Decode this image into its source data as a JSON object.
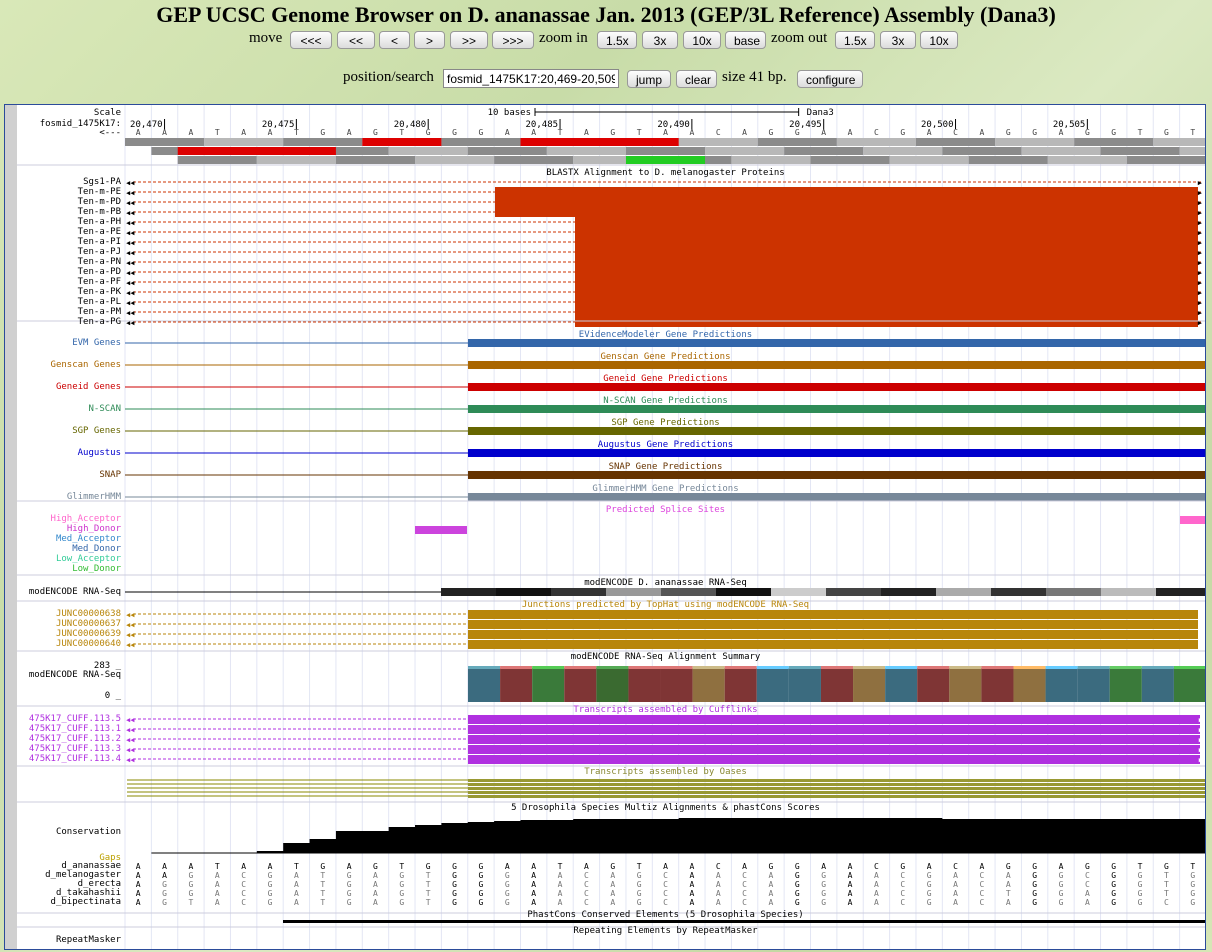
{
  "title": "GEP UCSC Genome Browser on D. ananassae Jan. 2013 (GEP/3L Reference) Assembly (Dana3)",
  "nav": {
    "move_label": "move",
    "move_buttons": [
      "<<<",
      "<<",
      "<",
      ">",
      ">>",
      ">>>"
    ],
    "zoom_in_label": "zoom in",
    "zoom_in_buttons": [
      "1.5x",
      "3x",
      "10x",
      "base"
    ],
    "zoom_out_label": "zoom out",
    "zoom_out_buttons": [
      "1.5x",
      "3x",
      "10x"
    ]
  },
  "search": {
    "label": "position/search",
    "value": "fosmid_1475K17:20,469-20,509",
    "jump": "jump",
    "clear": "clear",
    "size_text": "size 41 bp.",
    "configure": "configure"
  },
  "ruler": {
    "scale_label": "Scale",
    "scale_text": "10 bases",
    "assembly": "Dana3",
    "chrom_label": "fosmid_1475K17:",
    "arrow_label": "<---",
    "positions": [
      "20,470",
      "20,475",
      "20,480",
      "20,485",
      "20,490",
      "20,495",
      "20,500",
      "20,505"
    ]
  },
  "colors": {
    "blastx": "#cc3300",
    "evm": "#3366aa",
    "genscan": "#aa6600",
    "geneid": "#cc0000",
    "nscan": "#2e8b57",
    "sgp": "#666600",
    "augustus": "#0000cc",
    "snap": "#663300",
    "glimmer": "#778899",
    "topHat": "#b8860b",
    "cufflinks": "#b030e0",
    "oases": "#999933"
  },
  "tracks": {
    "blastx": {
      "title": "BLASTX Alignment to D. melanogaster Proteins",
      "labels": [
        "Sgs1-PA",
        "Ten-m-PE",
        "Ten-m-PD",
        "Ten-m-PB",
        "Ten-a-PH",
        "Ten-a-PE",
        "Ten-a-PI",
        "Ten-a-PJ",
        "Ten-a-PN",
        "Ten-a-PD",
        "Ten-a-PF",
        "Ten-a-PK",
        "Ten-a-PL",
        "Ten-a-PM",
        "Ten-a-PG"
      ]
    },
    "predictions": [
      {
        "label": "EVM Genes",
        "title": "EVidenceModeler Gene Predictions"
      },
      {
        "label": "Genscan Genes",
        "title": "Genscan Gene Predictions"
      },
      {
        "label": "Geneid Genes",
        "title": "Geneid Gene Predictions"
      },
      {
        "label": "N-SCAN",
        "title": "N-SCAN Gene Predictions"
      },
      {
        "label": "SGP Genes",
        "title": "SGP Gene Predictions"
      },
      {
        "label": "Augustus",
        "title": "Augustus Gene Predictions"
      },
      {
        "label": "SNAP",
        "title": "SNAP Gene Predictions"
      },
      {
        "label": "GlimmerHMM",
        "title": "GlimmerHMM Gene Predictions"
      }
    ],
    "splice": {
      "title": "Predicted Splice Sites",
      "labels": [
        "High_Acceptor",
        "High_Donor",
        "Med_Acceptor",
        "Med_Donor",
        "Low_Acceptor",
        "Low_Donor"
      ]
    },
    "rnaseq": {
      "label": "modENCODE RNA-Seq",
      "title": "modENCODE D. ananassae RNA-Seq"
    },
    "tophat": {
      "title": "Junctions predicted by TopHat using modENCODE RNA-Seq",
      "labels": [
        "JUNC00000638",
        "JUNC00000637",
        "JUNC00000639",
        "JUNC00000640"
      ]
    },
    "rnasummary": {
      "title": "modENCODE RNA-Seq Alignment Summary",
      "label": "modENCODE RNA-Seq",
      "max": "283 _",
      "min": "0 _"
    },
    "cufflinks": {
      "title": "Transcripts assembled by Cufflinks",
      "labels": [
        "475K17_CUFF.113.5",
        "475K17_CUFF.113.1",
        "475K17_CUFF.113.2",
        "475K17_CUFF.113.3",
        "475K17_CUFF.113.4"
      ]
    },
    "oases": {
      "title": "Transcripts assembled by Oases"
    },
    "conservation": {
      "title": "5 Drosophila Species Multiz Alignments & phastCons Scores",
      "label": "Conservation",
      "gaps": "Gaps",
      "species": [
        "d_ananassae",
        "d_melanogaster",
        "d_erecta",
        "d_takahashii",
        "d_bipectinata"
      ]
    },
    "phastcons": {
      "title": "PhastCons Conserved Elements (5 Drosophila Species)"
    },
    "repeatmasker": {
      "label": "RepeatMasker",
      "title": "Repeating Elements by RepeatMasker"
    }
  },
  "sequence": {
    "bases": "AAATAATGAGTGGGAATAGTAACAGGAACGACAGGAGGTGT",
    "aligned": [
      "AAATAATGAGTGGGAATAGTAACAGGAACGACAGGAGGTGT",
      "AAGACGATGAGTGGGAACAGCAACAGGAACGACAGGCGGTGT",
      "AGGACGATGAGTGGGAACAGCAACAGGAACGACAGGCGGTGT",
      "AGGACGATGAGTGGGAACAGCAACAGGAACGACTGGAGGTGT",
      "AGTACGATGAGTGGGAACAGCAACAGGAACGACAGGAGGCGT"
    ]
  }
}
